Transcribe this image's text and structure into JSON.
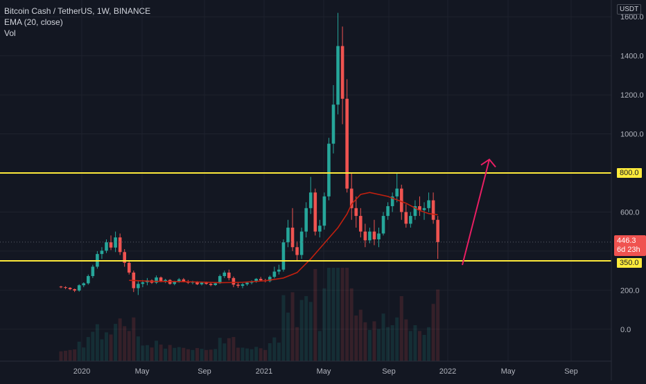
{
  "header": {
    "symbol_line": "Bitcoin Cash / TetherUS, 1W, BINANCE",
    "indicator_line": "EMA (20, close)",
    "volume_line": "Vol"
  },
  "axis": {
    "currency": "USDT",
    "y_labels": [
      "1600.0",
      "1400.0",
      "1200.0",
      "1000.0",
      "600.0",
      "200.0",
      "0.0"
    ],
    "x_labels": [
      "2020",
      "May",
      "Sep",
      "2021",
      "May",
      "Sep",
      "2022",
      "May",
      "Sep"
    ]
  },
  "levels": {
    "resistance": "800.0",
    "support": "350.0"
  },
  "last_price": {
    "value": "446.3",
    "countdown": "6d 23h"
  },
  "colors": {
    "background": "#131722",
    "up": "#26a69a",
    "down": "#ef5350",
    "ema": "#c2200f",
    "level": "#ffeb3b",
    "arrow": "#e91e63"
  },
  "chart_data": {
    "type": "candlestick",
    "title": "Bitcoin Cash / TetherUS, 1W, BINANCE",
    "ylim": [
      -160,
      1640
    ],
    "x_range": [
      "2019-10",
      "2022-12"
    ],
    "horizontal_levels": [
      800,
      350
    ],
    "projection_arrow": {
      "from": 350,
      "to": 880
    },
    "series": [
      {
        "name": "Bitcoin Cash / TetherUS",
        "style": "candles",
        "ohlc": [
          [
            218,
            222,
            210,
            215
          ],
          [
            215,
            220,
            205,
            212
          ],
          [
            212,
            215,
            200,
            205
          ],
          [
            205,
            208,
            190,
            198
          ],
          [
            198,
            230,
            192,
            225
          ],
          [
            225,
            240,
            215,
            235
          ],
          [
            235,
            280,
            228,
            272
          ],
          [
            272,
            330,
            262,
            320
          ],
          [
            320,
            400,
            310,
            385
          ],
          [
            385,
            420,
            360,
            402
          ],
          [
            402,
            460,
            390,
            445
          ],
          [
            445,
            480,
            405,
            418
          ],
          [
            418,
            500,
            395,
            470
          ],
          [
            470,
            490,
            380,
            395
          ],
          [
            395,
            410,
            320,
            340
          ],
          [
            340,
            350,
            280,
            290
          ],
          [
            290,
            300,
            190,
            210
          ],
          [
            210,
            245,
            175,
            232
          ],
          [
            232,
            252,
            215,
            240
          ],
          [
            240,
            262,
            225,
            250
          ],
          [
            250,
            255,
            232,
            238
          ],
          [
            238,
            275,
            232,
            265
          ],
          [
            265,
            270,
            240,
            245
          ],
          [
            245,
            258,
            236,
            252
          ],
          [
            252,
            256,
            228,
            232
          ],
          [
            232,
            248,
            225,
            242
          ],
          [
            242,
            262,
            238,
            255
          ],
          [
            255,
            262,
            240,
            244
          ],
          [
            244,
            252,
            232,
            238
          ],
          [
            238,
            248,
            230,
            242
          ],
          [
            242,
            246,
            226,
            230
          ],
          [
            230,
            244,
            224,
            238
          ],
          [
            238,
            244,
            228,
            232
          ],
          [
            232,
            238,
            220,
            226
          ],
          [
            226,
            240,
            222,
            235
          ],
          [
            235,
            280,
            232,
            272
          ],
          [
            272,
            300,
            262,
            290
          ],
          [
            290,
            305,
            250,
            262
          ],
          [
            262,
            270,
            215,
            228
          ],
          [
            228,
            240,
            212,
            222
          ],
          [
            222,
            236,
            210,
            230
          ],
          [
            230,
            244,
            222,
            238
          ],
          [
            238,
            250,
            230,
            244
          ],
          [
            244,
            262,
            238,
            258
          ],
          [
            258,
            268,
            245,
            250
          ],
          [
            250,
            258,
            240,
            246
          ],
          [
            246,
            275,
            240,
            268
          ],
          [
            268,
            320,
            260,
            295
          ],
          [
            295,
            330,
            280,
            305
          ],
          [
            305,
            460,
            295,
            445
          ],
          [
            445,
            560,
            420,
            520
          ],
          [
            520,
            620,
            400,
            420
          ],
          [
            420,
            450,
            350,
            380
          ],
          [
            380,
            520,
            360,
            500
          ],
          [
            500,
            650,
            470,
            620
          ],
          [
            620,
            780,
            590,
            700
          ],
          [
            700,
            720,
            480,
            500
          ],
          [
            500,
            560,
            470,
            530
          ],
          [
            530,
            700,
            510,
            680
          ],
          [
            680,
            980,
            660,
            950
          ],
          [
            950,
            1250,
            900,
            1150
          ],
          [
            1150,
            1620,
            1100,
            1450
          ],
          [
            1450,
            1550,
            1050,
            1180
          ],
          [
            1180,
            1280,
            700,
            720
          ],
          [
            720,
            800,
            560,
            620
          ],
          [
            620,
            680,
            520,
            580
          ],
          [
            580,
            620,
            470,
            500
          ],
          [
            500,
            540,
            420,
            455
          ],
          [
            455,
            520,
            440,
            500
          ],
          [
            500,
            560,
            430,
            460
          ],
          [
            460,
            520,
            420,
            490
          ],
          [
            490,
            600,
            480,
            580
          ],
          [
            580,
            650,
            560,
            630
          ],
          [
            630,
            700,
            600,
            680
          ],
          [
            680,
            800,
            650,
            720
          ],
          [
            720,
            740,
            560,
            600
          ],
          [
            600,
            640,
            520,
            540
          ],
          [
            540,
            600,
            520,
            580
          ],
          [
            580,
            660,
            560,
            630
          ],
          [
            630,
            680,
            580,
            610
          ],
          [
            610,
            650,
            560,
            620
          ],
          [
            620,
            700,
            600,
            660
          ],
          [
            660,
            700,
            540,
            560
          ],
          [
            560,
            580,
            360,
            446
          ]
        ]
      },
      {
        "name": "EMA (20, close)",
        "style": "line",
        "points": [
          [
            15,
            250
          ],
          [
            20,
            245
          ],
          [
            25,
            244
          ],
          [
            30,
            242
          ],
          [
            35,
            238
          ],
          [
            40,
            240
          ],
          [
            45,
            248
          ],
          [
            49,
            262
          ],
          [
            52,
            290
          ],
          [
            55,
            360
          ],
          [
            58,
            440
          ],
          [
            61,
            520
          ],
          [
            63,
            590
          ],
          [
            64,
            640
          ],
          [
            66,
            690
          ],
          [
            68,
            700
          ],
          [
            72,
            680
          ],
          [
            76,
            645
          ],
          [
            79,
            608
          ],
          [
            81,
            592
          ],
          [
            83,
            586
          ]
        ]
      }
    ]
  }
}
